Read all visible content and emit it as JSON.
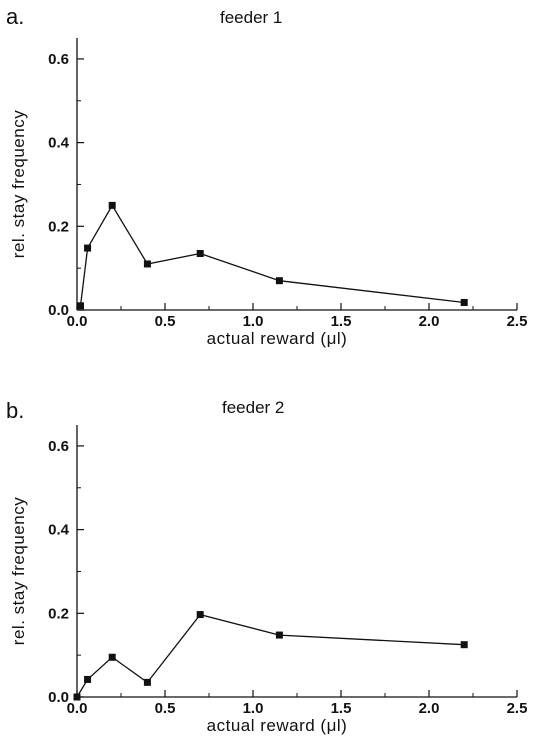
{
  "chart_data": [
    {
      "type": "line",
      "panel_label": "a.",
      "title": "feeder 1",
      "xlabel": "actual reward   (μl)",
      "ylabel": "rel. stay frequency",
      "xlim": [
        0,
        2.5
      ],
      "ylim": [
        0,
        0.65
      ],
      "xticks": [
        0.0,
        0.5,
        1.0,
        1.5,
        2.0,
        2.5
      ],
      "xtick_labels": [
        "0.0",
        "0.5",
        "1.0",
        "1.5",
        "2.0",
        "2.5"
      ],
      "yticks": [
        0.0,
        0.2,
        0.4,
        0.6
      ],
      "ytick_labels": [
        "0.0",
        "0.2",
        "0.4",
        "0.6"
      ],
      "grid": false,
      "series": [
        {
          "marker": "square",
          "points": [
            {
              "x": 0.02,
              "y": 0.01
            },
            {
              "x": 0.06,
              "y": 0.148
            },
            {
              "x": 0.2,
              "y": 0.25
            },
            {
              "x": 0.4,
              "y": 0.11
            },
            {
              "x": 0.7,
              "y": 0.135
            },
            {
              "x": 1.15,
              "y": 0.07
            },
            {
              "x": 2.2,
              "y": 0.018
            }
          ]
        }
      ]
    },
    {
      "type": "line",
      "panel_label": "b.",
      "title": "feeder 2",
      "xlabel": "actual reward   (μl)",
      "ylabel": "rel. stay frequency",
      "xlim": [
        0,
        2.5
      ],
      "ylim": [
        0,
        0.65
      ],
      "xticks": [
        0.0,
        0.5,
        1.0,
        1.5,
        2.0,
        2.5
      ],
      "xtick_labels": [
        "0.0",
        "0.5",
        "1.0",
        "1.5",
        "2.0",
        "2.5"
      ],
      "yticks": [
        0.0,
        0.2,
        0.4,
        0.6
      ],
      "ytick_labels": [
        "0.0",
        "0.2",
        "0.4",
        "0.6"
      ],
      "grid": false,
      "series": [
        {
          "marker": "square",
          "points": [
            {
              "x": 0.0,
              "y": 0.0
            },
            {
              "x": 0.06,
              "y": 0.042
            },
            {
              "x": 0.2,
              "y": 0.095
            },
            {
              "x": 0.4,
              "y": 0.035
            },
            {
              "x": 0.7,
              "y": 0.197
            },
            {
              "x": 1.15,
              "y": 0.148
            },
            {
              "x": 2.2,
              "y": 0.125
            }
          ]
        }
      ]
    }
  ]
}
